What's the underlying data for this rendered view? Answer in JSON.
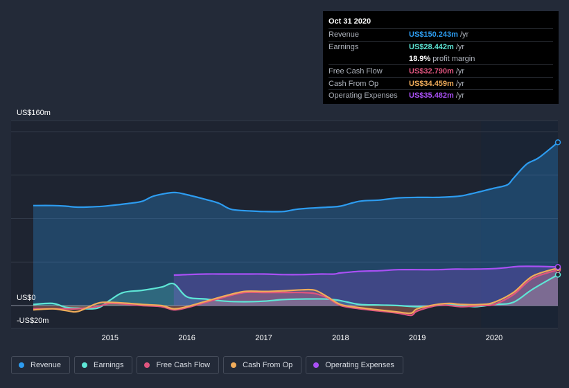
{
  "tooltip": {
    "date": "Oct 31 2020",
    "rows": [
      {
        "label": "Revenue",
        "value": "US$150.243m",
        "unit": "/yr",
        "color": "#2d9cf0"
      },
      {
        "label": "Earnings",
        "value": "US$28.442m",
        "unit": "/yr",
        "color": "#5ee6d6"
      },
      {
        "label": "",
        "value": "18.9%",
        "unit": "profit margin",
        "color": "#ffffff"
      },
      {
        "label": "Free Cash Flow",
        "value": "US$32.790m",
        "unit": "/yr",
        "color": "#e0557f"
      },
      {
        "label": "Cash From Op",
        "value": "US$34.459m",
        "unit": "/yr",
        "color": "#f0ac5a"
      },
      {
        "label": "Operating Expenses",
        "value": "US$35.482m",
        "unit": "/yr",
        "color": "#a950f5"
      }
    ]
  },
  "legend": [
    {
      "label": "Revenue",
      "color": "#2d9cf0"
    },
    {
      "label": "Earnings",
      "color": "#5ee6d6"
    },
    {
      "label": "Free Cash Flow",
      "color": "#e0557f"
    },
    {
      "label": "Cash From Op",
      "color": "#f0ac5a"
    },
    {
      "label": "Operating Expenses",
      "color": "#a950f5"
    }
  ],
  "chart_data": {
    "type": "area",
    "y_tick_labels": {
      "top": "US$160m",
      "zero": "US$0",
      "bottom": "-US$20m"
    },
    "ylim": [
      -20,
      160
    ],
    "xlim": [
      2014.0,
      2020.83
    ],
    "x_tick_labels": [
      "2015",
      "2016",
      "2017",
      "2018",
      "2019",
      "2020"
    ],
    "x_ticks": [
      2015,
      2016,
      2017,
      2018,
      2019,
      2020
    ],
    "grid": true,
    "highlight_from": 2019.83,
    "series": [
      {
        "name": "Revenue",
        "color": "#2d9cf0",
        "x": [
          2014.0,
          2014.25,
          2014.42,
          2014.58,
          2014.83,
          2015.0,
          2015.25,
          2015.42,
          2015.58,
          2015.83,
          2016.0,
          2016.25,
          2016.42,
          2016.58,
          2016.83,
          2017.0,
          2017.25,
          2017.42,
          2017.58,
          2017.83,
          2018.0,
          2018.25,
          2018.5,
          2018.75,
          2019.0,
          2019.25,
          2019.42,
          2019.58,
          2019.83,
          2020.0,
          2020.17,
          2020.25,
          2020.42,
          2020.58,
          2020.83
        ],
        "values": [
          92,
          92,
          91.5,
          90.5,
          91,
          92,
          94,
          96,
          101,
          104,
          102,
          97.5,
          94,
          88.5,
          87,
          86.5,
          86.5,
          88.5,
          89.5,
          90.5,
          91.5,
          96,
          97,
          99,
          99.5,
          99.5,
          100,
          101,
          105,
          108,
          111,
          117,
          130,
          136,
          150.2
        ]
      },
      {
        "name": "Earnings",
        "color": "#5ee6d6",
        "x": [
          2014.0,
          2014.25,
          2014.42,
          2014.58,
          2014.83,
          2015.0,
          2015.17,
          2015.42,
          2015.67,
          2015.83,
          2016.0,
          2016.25,
          2016.5,
          2016.75,
          2017.0,
          2017.25,
          2017.5,
          2017.83,
          2018.0,
          2018.25,
          2018.5,
          2018.75,
          2019.0,
          2019.25,
          2019.5,
          2019.75,
          2020.0,
          2020.25,
          2020.5,
          2020.83
        ],
        "values": [
          1,
          2,
          -1.5,
          -2.5,
          -2.5,
          5,
          12,
          14,
          17,
          20,
          8,
          6,
          4,
          3.5,
          4,
          5.5,
          6,
          6,
          4.5,
          1,
          0.5,
          0,
          -1,
          0,
          0.5,
          -1,
          1,
          3,
          15,
          28.4
        ]
      },
      {
        "name": "Free Cash Flow",
        "color": "#e0557f",
        "x": [
          2014.0,
          2014.25,
          2014.42,
          2014.58,
          2014.83,
          2015.0,
          2015.25,
          2015.42,
          2015.67,
          2015.83,
          2016.0,
          2016.25,
          2016.5,
          2016.75,
          2017.0,
          2017.25,
          2017.5,
          2017.67,
          2017.83,
          2018.0,
          2018.25,
          2018.5,
          2018.75,
          2018.92,
          2019.0,
          2019.25,
          2019.42,
          2019.58,
          2019.83,
          2020.0,
          2020.25,
          2020.5,
          2020.83
        ],
        "values": [
          -3,
          -3,
          -3,
          -3,
          -1,
          2,
          1,
          0,
          -1,
          -4,
          -2,
          3,
          8,
          12,
          12,
          12,
          12,
          11,
          7,
          0,
          -3,
          -5,
          -7,
          -9,
          -5,
          0,
          0,
          -1,
          0,
          1,
          10,
          25,
          32.8
        ]
      },
      {
        "name": "Cash From Op",
        "color": "#f0ac5a",
        "x": [
          2014.0,
          2014.25,
          2014.42,
          2014.58,
          2014.83,
          2015.0,
          2015.25,
          2015.42,
          2015.67,
          2015.83,
          2016.0,
          2016.25,
          2016.5,
          2016.75,
          2017.0,
          2017.25,
          2017.5,
          2017.67,
          2017.83,
          2018.0,
          2018.25,
          2018.5,
          2018.75,
          2018.92,
          2019.0,
          2019.25,
          2019.42,
          2019.58,
          2019.83,
          2020.0,
          2020.25,
          2020.5,
          2020.83
        ],
        "values": [
          -4,
          -3,
          -4.5,
          -5.5,
          2,
          3,
          2,
          1,
          0,
          -3,
          -1,
          4,
          9,
          13,
          13,
          13.5,
          14.5,
          14,
          8,
          1,
          -2,
          -4,
          -6,
          -7,
          -3,
          1,
          2,
          1,
          1,
          3,
          12,
          27,
          34.5
        ]
      },
      {
        "name": "Operating Expenses",
        "color": "#a950f5",
        "x": [
          2015.83,
          2016.0,
          2016.25,
          2016.5,
          2016.75,
          2017.0,
          2017.25,
          2017.5,
          2017.75,
          2017.92,
          2018.0,
          2018.25,
          2018.5,
          2018.75,
          2019.0,
          2019.25,
          2019.5,
          2019.75,
          2020.0,
          2020.17,
          2020.33,
          2020.58,
          2020.83
        ],
        "values": [
          28,
          28.5,
          29,
          29,
          29,
          29,
          28.5,
          28.5,
          29,
          29,
          30,
          31.5,
          32,
          33,
          33,
          33,
          33.5,
          33.5,
          34,
          35,
          36,
          36,
          35.5
        ]
      }
    ]
  }
}
